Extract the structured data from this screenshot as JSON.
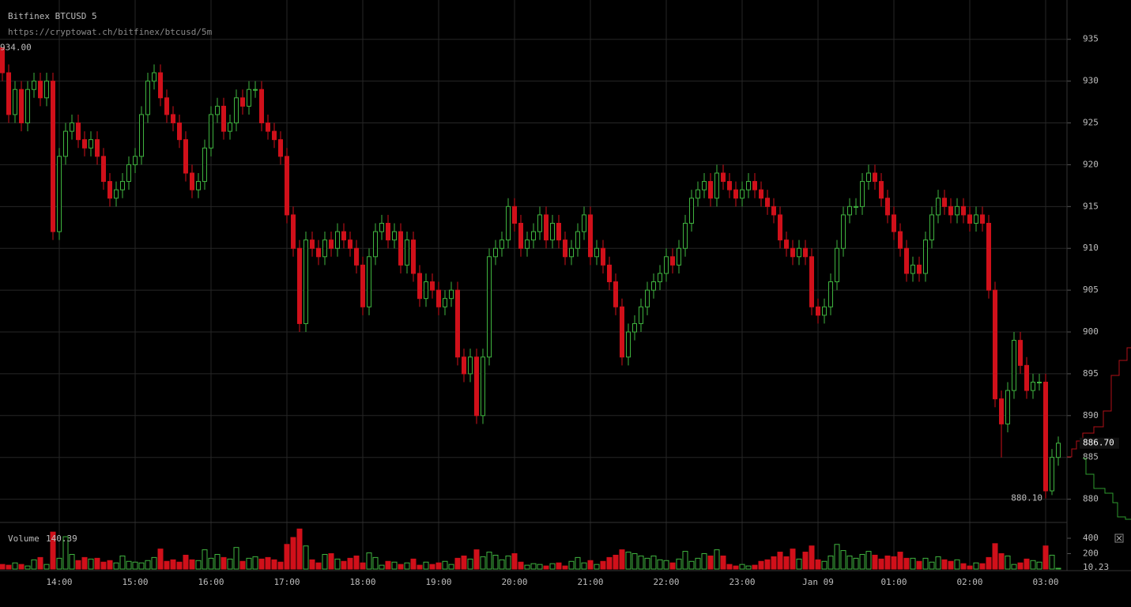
{
  "chart_data": {
    "type": "candlestick",
    "title": "Bitfinex BTCUSD 5",
    "subtitle": "https://cryptowat.ch/bitfinex/btcusd/5m",
    "categories": [
      null,
      null,
      null,
      null,
      null,
      null,
      null,
      null,
      null,
      "14:00",
      null,
      null,
      null,
      null,
      null,
      null,
      null,
      null,
      null,
      null,
      null,
      "15:00",
      null,
      null,
      null,
      null,
      null,
      null,
      null,
      null,
      null,
      null,
      null,
      "16:00",
      null,
      null,
      null,
      null,
      null,
      null,
      null,
      null,
      null,
      null,
      null,
      "17:00",
      null,
      null,
      null,
      null,
      null,
      null,
      null,
      null,
      null,
      null,
      null,
      "18:00",
      null,
      null,
      null,
      null,
      null,
      null,
      null,
      null,
      null,
      null,
      null,
      "19:00",
      null,
      null,
      null,
      null,
      null,
      null,
      null,
      null,
      null,
      null,
      null,
      "20:00",
      null,
      null,
      null,
      null,
      null,
      null,
      null,
      null,
      null,
      null,
      null,
      "21:00",
      null,
      null,
      null,
      null,
      null,
      null,
      null,
      null,
      null,
      null,
      null,
      "22:00",
      null,
      null,
      null,
      null,
      null,
      null,
      null,
      null,
      null,
      null,
      null,
      "23:00",
      null,
      null,
      null,
      null,
      null,
      null,
      null,
      null,
      null,
      null,
      null,
      "Jan 09",
      null,
      null,
      null,
      null,
      null,
      null,
      null,
      null,
      null,
      null,
      null,
      "01:00",
      null,
      null,
      null,
      null,
      null,
      null,
      null,
      null,
      null,
      null,
      null,
      "02:00",
      null,
      null,
      null,
      null,
      null,
      null,
      null,
      null,
      null,
      null,
      null,
      "03:00",
      null,
      null
    ],
    "open": [
      934,
      931,
      926,
      929,
      925,
      929,
      930,
      928,
      930,
      912,
      921,
      924,
      925,
      923,
      922,
      923,
      921,
      918,
      916,
      917,
      918,
      920,
      921,
      926,
      930,
      931,
      928,
      926,
      925,
      923,
      919,
      917,
      918,
      922,
      926,
      927,
      924,
      925,
      928,
      927,
      929,
      929,
      925,
      924,
      923,
      921,
      914,
      910,
      901,
      911,
      910,
      909,
      911,
      910,
      912,
      911,
      910,
      908,
      903,
      909,
      912,
      913,
      911,
      912,
      908,
      911,
      907,
      904,
      906,
      905,
      903,
      904,
      905,
      897,
      895,
      897,
      890,
      897,
      909,
      910,
      911,
      915,
      913,
      910,
      911,
      912,
      914,
      911,
      913,
      911,
      909,
      910,
      912,
      914,
      909,
      910,
      908,
      906,
      903,
      897,
      900,
      901,
      903,
      905,
      906,
      907,
      909,
      908,
      910,
      913,
      916,
      917,
      918,
      916,
      919,
      918,
      917,
      916,
      917,
      918,
      917,
      916,
      915,
      914,
      911,
      910,
      909,
      910,
      909,
      903,
      902,
      903,
      906,
      910,
      914,
      915,
      915,
      918,
      919,
      918,
      916,
      914,
      912,
      910,
      907,
      908,
      907,
      911,
      914,
      916,
      915,
      914,
      915,
      914,
      913,
      914,
      913,
      905,
      892,
      889,
      893,
      899,
      896,
      893,
      894,
      894,
      881,
      885
    ],
    "high": [
      934,
      932,
      930,
      930,
      930,
      931,
      931,
      931,
      931,
      922,
      925,
      926,
      926,
      924,
      924,
      924,
      922,
      919,
      918,
      919,
      921,
      922,
      927,
      931,
      932,
      932,
      929,
      927,
      926,
      924,
      920,
      919,
      923,
      927,
      928,
      928,
      926,
      929,
      929,
      930,
      930,
      930,
      926,
      925,
      924,
      922,
      915,
      911,
      912,
      912,
      911,
      912,
      912,
      913,
      913,
      912,
      911,
      909,
      910,
      913,
      914,
      914,
      913,
      913,
      912,
      912,
      908,
      907,
      907,
      906,
      905,
      906,
      906,
      898,
      898,
      898,
      898,
      910,
      911,
      912,
      916,
      916,
      914,
      912,
      913,
      915,
      915,
      914,
      914,
      912,
      911,
      913,
      915,
      915,
      911,
      911,
      909,
      907,
      904,
      901,
      902,
      904,
      906,
      907,
      908,
      910,
      910,
      911,
      914,
      917,
      918,
      919,
      919,
      920,
      920,
      919,
      918,
      918,
      919,
      919,
      918,
      917,
      916,
      915,
      912,
      911,
      911,
      911,
      910,
      904,
      904,
      907,
      911,
      915,
      916,
      916,
      919,
      920,
      920,
      919,
      917,
      915,
      913,
      911,
      909,
      909,
      912,
      915,
      917,
      917,
      916,
      916,
      916,
      915,
      915,
      915,
      914,
      906,
      893,
      894,
      900,
      900,
      897,
      895,
      895,
      895,
      886,
      887.5
    ],
    "low": [
      930,
      925,
      925,
      924,
      924,
      928,
      927,
      927,
      911,
      911,
      920,
      923,
      922,
      921,
      921,
      920,
      917,
      915,
      915,
      916,
      917,
      919,
      920,
      925,
      929,
      927,
      925,
      924,
      922,
      918,
      916,
      916,
      917,
      921,
      925,
      923,
      923,
      924,
      926,
      926,
      928,
      924,
      923,
      922,
      920,
      913,
      909,
      900,
      900,
      909,
      908,
      908,
      909,
      909,
      910,
      909,
      907,
      902,
      902,
      908,
      911,
      910,
      910,
      907,
      907,
      906,
      903,
      903,
      904,
      902,
      902,
      903,
      896,
      894,
      894,
      889,
      889,
      896,
      908,
      909,
      910,
      912,
      909,
      909,
      910,
      911,
      910,
      910,
      910,
      908,
      908,
      909,
      911,
      908,
      908,
      907,
      905,
      902,
      896,
      896,
      899,
      900,
      902,
      904,
      905,
      906,
      907,
      907,
      909,
      912,
      915,
      916,
      915,
      915,
      917,
      916,
      915,
      915,
      916,
      916,
      915,
      914,
      913,
      910,
      909,
      908,
      908,
      908,
      902,
      901,
      901,
      902,
      905,
      909,
      913,
      914,
      914,
      917,
      917,
      915,
      913,
      911,
      909,
      906,
      906,
      906,
      906,
      910,
      913,
      914,
      913,
      913,
      913,
      912,
      912,
      912,
      904,
      891,
      885,
      888,
      892,
      895,
      892,
      892,
      893,
      880.1,
      880.5,
      884
    ],
    "close": [
      931,
      926,
      929,
      925,
      929,
      930,
      928,
      930,
      912,
      921,
      924,
      925,
      923,
      922,
      923,
      921,
      918,
      916,
      917,
      918,
      920,
      921,
      926,
      930,
      931,
      928,
      926,
      925,
      923,
      919,
      917,
      918,
      922,
      926,
      927,
      924,
      925,
      928,
      927,
      929,
      929,
      925,
      924,
      923,
      921,
      914,
      910,
      901,
      911,
      910,
      909,
      911,
      910,
      912,
      911,
      910,
      908,
      903,
      909,
      912,
      913,
      911,
      912,
      908,
      911,
      907,
      904,
      906,
      905,
      903,
      904,
      905,
      897,
      895,
      897,
      890,
      897,
      909,
      910,
      911,
      915,
      913,
      910,
      911,
      912,
      914,
      911,
      913,
      911,
      909,
      910,
      912,
      914,
      909,
      910,
      908,
      906,
      903,
      897,
      900,
      901,
      903,
      905,
      906,
      907,
      909,
      908,
      910,
      913,
      916,
      917,
      918,
      916,
      919,
      918,
      917,
      916,
      917,
      918,
      917,
      916,
      915,
      914,
      911,
      910,
      909,
      910,
      909,
      903,
      902,
      903,
      906,
      910,
      914,
      915,
      915,
      918,
      919,
      918,
      916,
      914,
      912,
      910,
      907,
      908,
      907,
      911,
      914,
      916,
      915,
      914,
      915,
      914,
      913,
      914,
      913,
      905,
      892,
      889,
      893,
      899,
      896,
      893,
      894,
      894,
      881,
      885,
      886.7
    ],
    "up_color": "#3fb43f",
    "down_color": "#d0101a",
    "grid": true,
    "ylim": [
      877.6,
      939.7
    ],
    "yticks": [
      880,
      885,
      890,
      895,
      900,
      905,
      910,
      915,
      920,
      925,
      930,
      935
    ],
    "annotations": {
      "high_label": "934.00",
      "low_label": "880.10",
      "last_label": "886.70"
    },
    "volume": {
      "label": "Volume",
      "value_label": "140.39",
      "values": [
        60,
        50,
        80,
        60,
        40,
        120,
        150,
        60,
        480,
        140,
        420,
        190,
        110,
        150,
        130,
        140,
        90,
        110,
        80,
        170,
        100,
        90,
        80,
        110,
        150,
        260,
        100,
        120,
        90,
        180,
        120,
        110,
        250,
        140,
        190,
        150,
        130,
        280,
        100,
        140,
        160,
        130,
        150,
        120,
        90,
        320,
        410,
        520,
        300,
        120,
        80,
        190,
        200,
        130,
        100,
        140,
        170,
        80,
        210,
        150,
        50,
        100,
        90,
        60,
        80,
        130,
        50,
        90,
        60,
        80,
        100,
        60,
        140,
        170,
        130,
        250,
        160,
        220,
        180,
        120,
        170,
        200,
        90,
        50,
        70,
        60,
        40,
        70,
        80,
        40,
        100,
        150,
        80,
        110,
        60,
        100,
        150,
        180,
        250,
        220,
        200,
        170,
        140,
        170,
        120,
        110,
        80,
        130,
        230,
        100,
        140,
        200,
        170,
        250,
        170,
        60,
        40,
        60,
        40,
        50,
        100,
        120,
        160,
        220,
        160,
        260,
        130,
        220,
        300,
        120,
        100,
        170,
        320,
        240,
        170,
        140,
        190,
        230,
        180,
        130,
        170,
        160,
        220,
        140,
        140,
        100,
        140,
        90,
        160,
        120,
        100,
        120,
        70,
        40,
        80,
        70,
        150,
        330,
        200,
        170,
        60,
        80,
        130,
        110,
        90,
        300,
        180,
        10.23
      ],
      "ylim": [
        0,
        564
      ],
      "yticks": [
        200,
        400
      ]
    }
  }
}
